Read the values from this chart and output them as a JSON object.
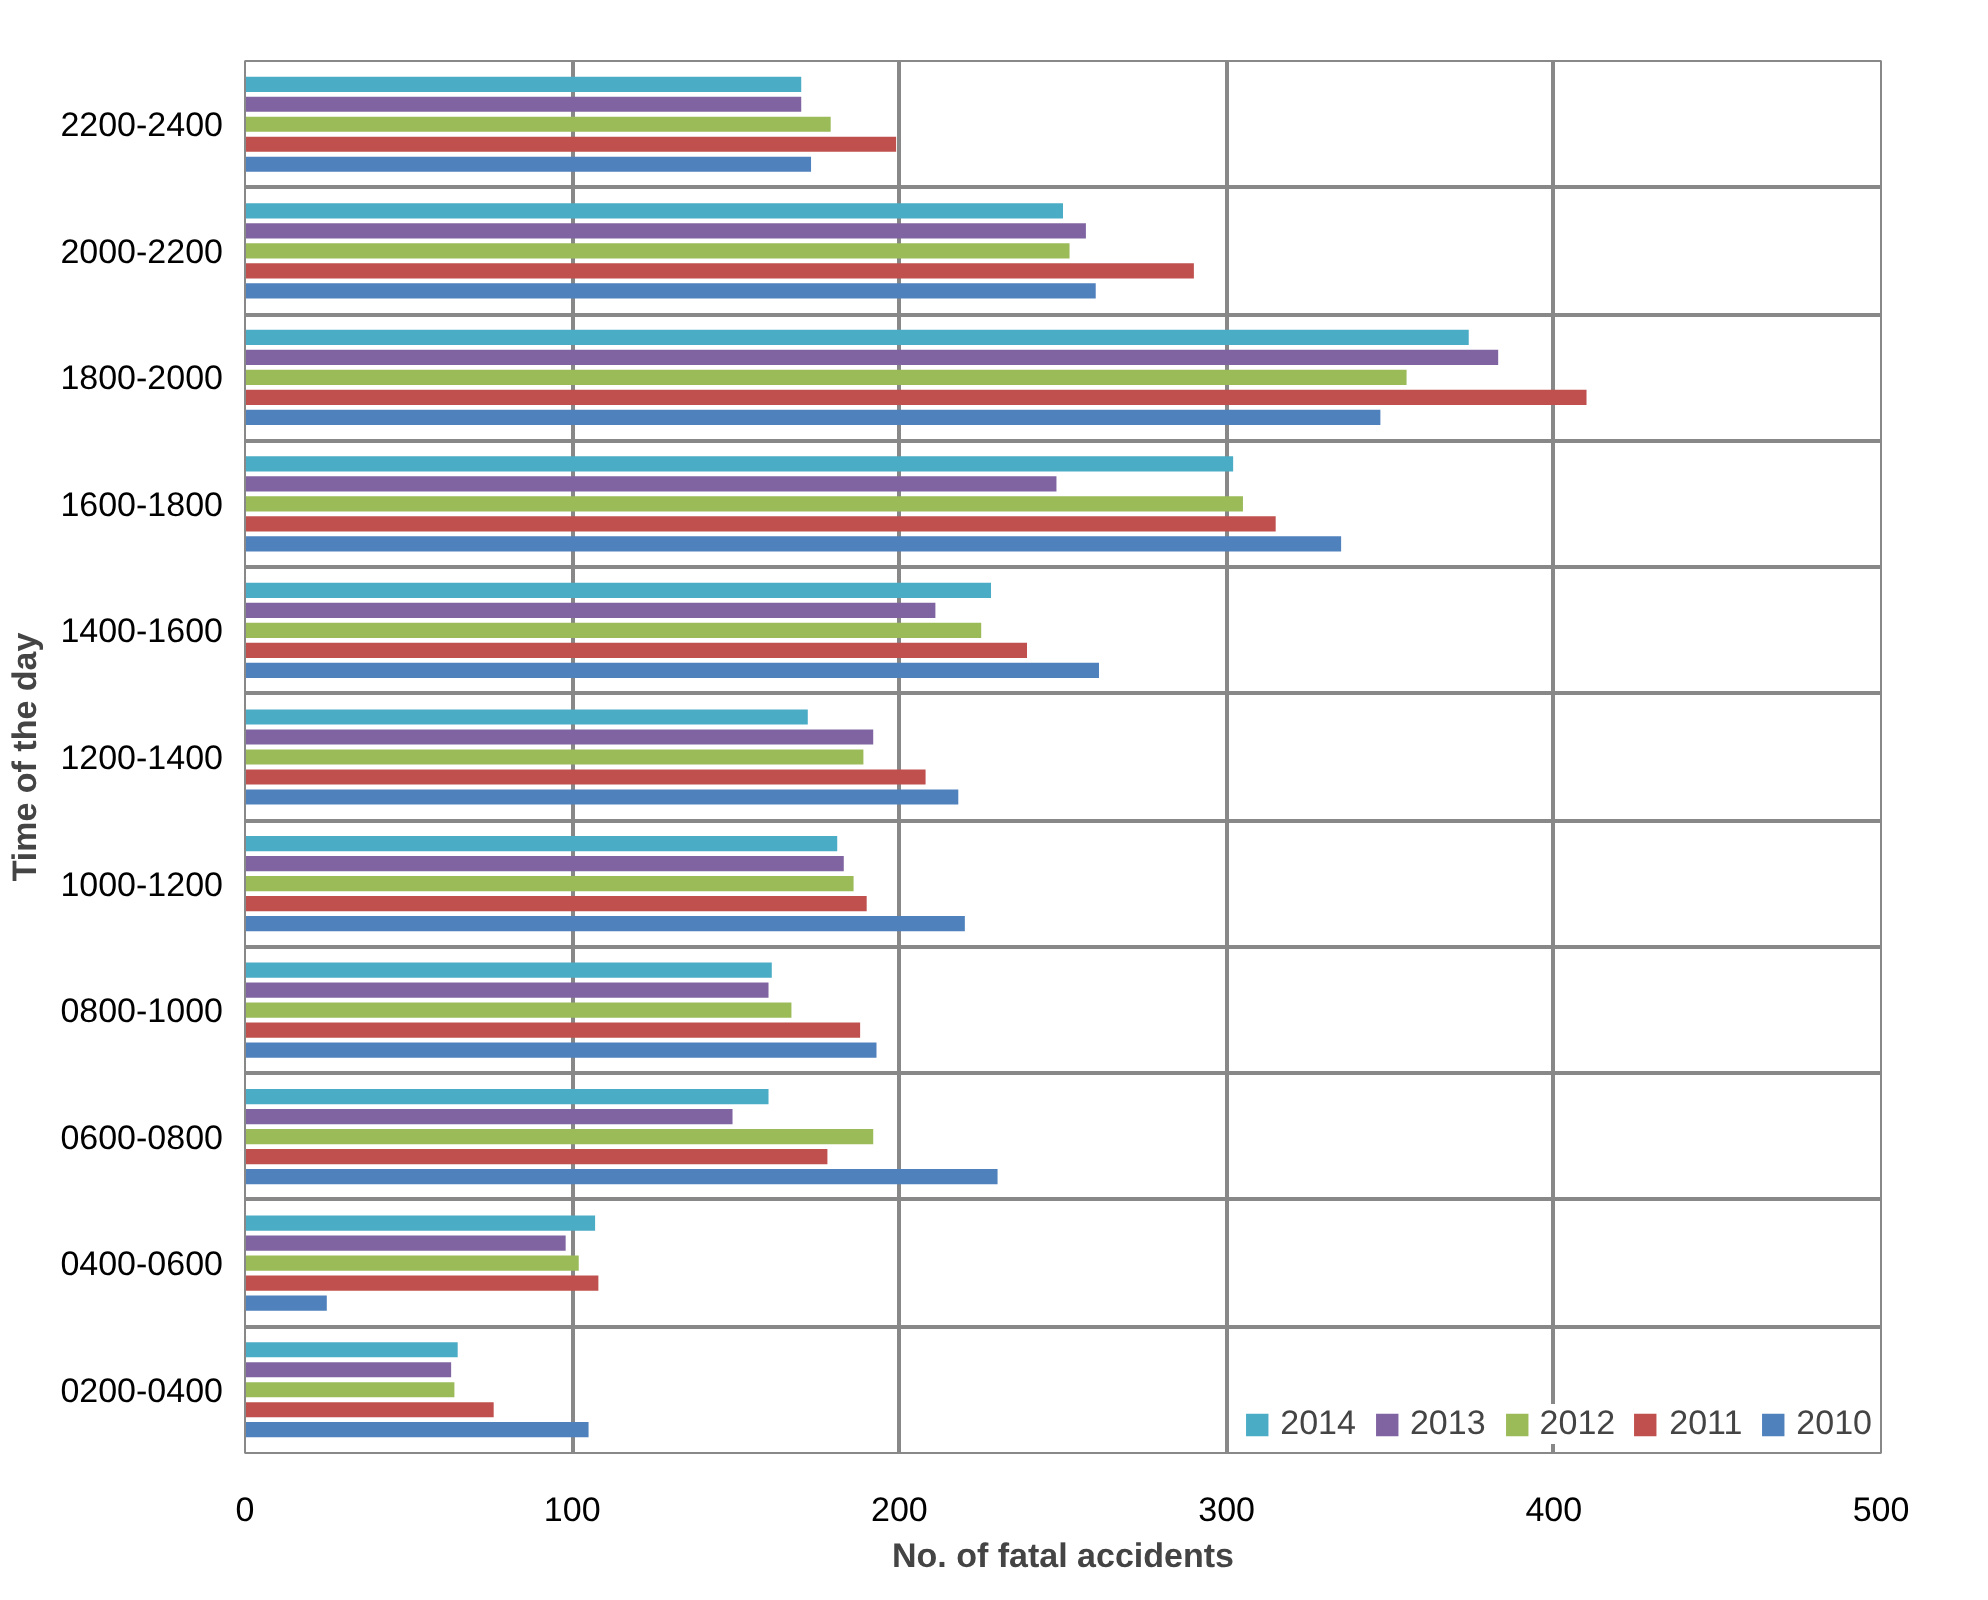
{
  "chart_data": {
    "type": "bar",
    "orientation": "horizontal",
    "xlabel": "No. of fatal accidents",
    "ylabel": "Time of the day",
    "categories": [
      "2200-2400",
      "2000-2200",
      "1800-2000",
      "1600-1800",
      "1400-1600",
      "1200-1400",
      "1000-1200",
      "0800-1000",
      "0600-0800",
      "0400-0600",
      "0200-0400"
    ],
    "series": [
      {
        "name": "2014",
        "color": "#4bacc6",
        "values": [
          170,
          250,
          374,
          302,
          228,
          172,
          181,
          161,
          160,
          107,
          65
        ]
      },
      {
        "name": "2013",
        "color": "#8064a2",
        "values": [
          170,
          257,
          383,
          248,
          211,
          192,
          183,
          160,
          149,
          98,
          63
        ]
      },
      {
        "name": "2012",
        "color": "#9bbb59",
        "values": [
          179,
          252,
          355,
          305,
          225,
          189,
          186,
          167,
          192,
          102,
          64
        ]
      },
      {
        "name": "2011",
        "color": "#c0504d",
        "values": [
          199,
          290,
          410,
          315,
          239,
          208,
          190,
          188,
          178,
          108,
          76
        ]
      },
      {
        "name": "2010",
        "color": "#4f81bd",
        "values": [
          173,
          260,
          347,
          335,
          261,
          218,
          220,
          193,
          230,
          25,
          105
        ]
      }
    ],
    "xlim": [
      0,
      500
    ],
    "xticks": [
      0,
      100,
      200,
      300,
      400,
      500
    ],
    "grid": true,
    "legend": "bottom right"
  }
}
